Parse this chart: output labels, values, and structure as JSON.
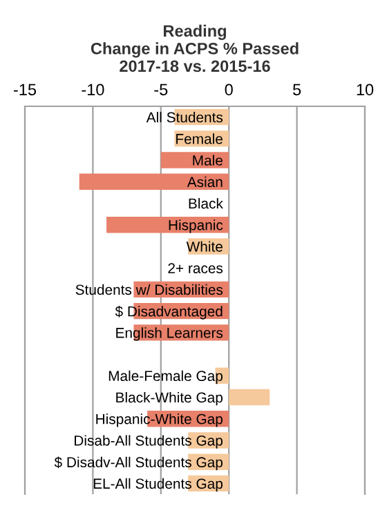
{
  "chart_data": {
    "type": "bar",
    "orientation": "horizontal",
    "title": "Reading\nChange in ACPS % Passed\n2017-18 vs. 2015-16",
    "categories": [
      "All Students",
      "Female",
      "Male",
      "Asian",
      "Black",
      "Hispanic",
      "White",
      "2+ races",
      "Students w/ Disabilities",
      "$ Disadvantaged",
      "English Learners",
      null,
      "Male-Female Gap",
      "Black-White Gap",
      "Hispanic-White Gap",
      "Disab-All Students Gap",
      "$ Disadv-All Students Gap",
      "EL-All Students Gap"
    ],
    "values": [
      -4,
      -4,
      -5,
      -11,
      0,
      -9,
      -3,
      0,
      -7,
      -7,
      -7,
      null,
      -1,
      3,
      -6,
      -3,
      -3,
      -3
    ],
    "colors": [
      "#f5c99b",
      "#f5c99b",
      "#e8806a",
      "#e8806a",
      "#f5c99b",
      "#e8806a",
      "#f5c99b",
      "#f5c99b",
      "#e8806a",
      "#e8806a",
      "#e8806a",
      "#f5c99b",
      "#f5c99b",
      "#f5c99b",
      "#e8806a",
      "#f5c99b",
      "#f5c99b",
      "#f5c99b"
    ],
    "xlim": [
      -15,
      10
    ],
    "xticks": [
      -15,
      -10,
      -5,
      0,
      5,
      10
    ],
    "grid": "x"
  }
}
